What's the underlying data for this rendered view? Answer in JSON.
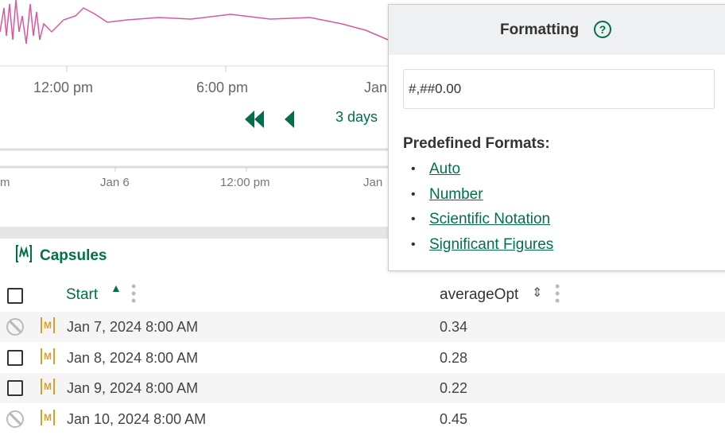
{
  "chart": {
    "top_axis_labels": [
      "12:00 pm",
      "6:00 pm",
      "Jan"
    ],
    "range_label": "3 days",
    "bottom_axis_labels": [
      "m",
      "Jan 6",
      "12:00 pm",
      "Jan"
    ]
  },
  "popover": {
    "title": "Formatting",
    "format_input": "#,##0.00",
    "predefined_title": "Predefined Formats:",
    "formats": [
      "Auto",
      "Number",
      "Scientific Notation",
      "Significant Figures"
    ]
  },
  "capsules": {
    "title": "Capsules",
    "columns": [
      "Start",
      "averageOpt"
    ],
    "rows": [
      [
        "Jan 7, 2024 8:00 AM",
        "0.34"
      ],
      [
        "Jan 8, 2024 8:00 AM",
        "0.28"
      ],
      [
        "Jan 9, 2024 8:00 AM",
        "0.22"
      ],
      [
        "Jan 10, 2024 8:00 AM",
        "0.45"
      ]
    ]
  }
}
